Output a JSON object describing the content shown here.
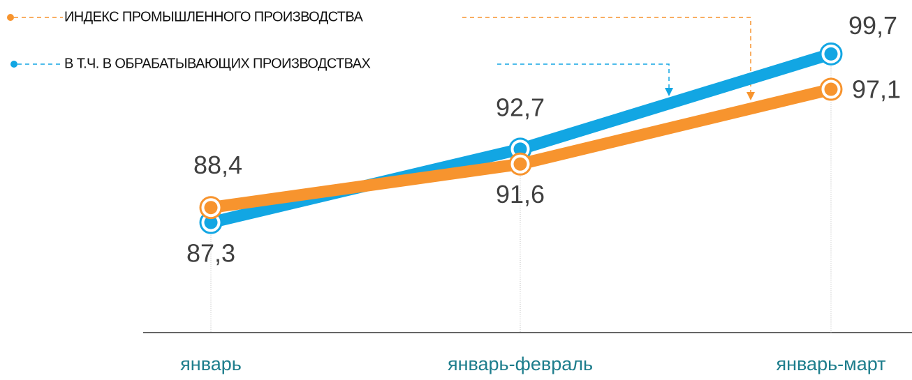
{
  "chart_data": {
    "type": "line",
    "categories": [
      "январь",
      "январь-февраль",
      "январь-март"
    ],
    "series": [
      {
        "name": "ИНДЕКС ПРОМЫШЛЕННОГО ПРОИЗВОДСТВА",
        "color": "#f7942e",
        "values": [
          88.4,
          91.6,
          97.1
        ],
        "value_labels": [
          "88,4",
          "91,6",
          "97,1"
        ]
      },
      {
        "name": "В Т.Ч. В ОБРАБАТЫВАЮЩИХ ПРОИЗВОДСТВАХ",
        "color": "#12a6e3",
        "values": [
          87.3,
          92.7,
          99.7
        ],
        "value_labels": [
          "87,3",
          "92,7",
          "99,7"
        ]
      }
    ],
    "ylim": [
      79,
      104
    ]
  }
}
